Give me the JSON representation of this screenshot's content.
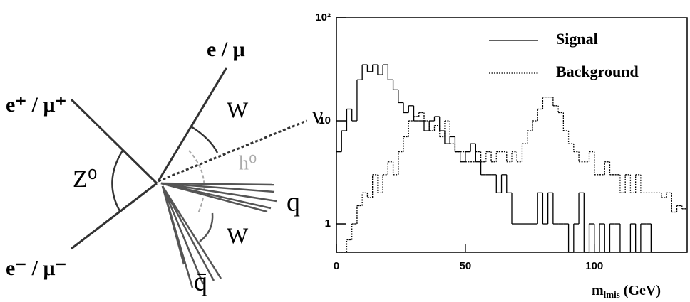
{
  "diagram": {
    "labels": {
      "e_mu": "e / μ",
      "e_plus": "e⁺ / μ⁺",
      "z0": "Z⁰",
      "e_minus": "e⁻ / μ⁻",
      "w_upper": "W",
      "nu": "ν",
      "h0": "h⁰",
      "q": "q",
      "w_lower": "W",
      "qbar": "q̄"
    }
  },
  "chart_data": {
    "type": "histogram",
    "x_label": "m",
    "x_label_sub": "lmis",
    "x_label_unit": "(GeV)",
    "bins": [
      0,
      2,
      4,
      6,
      8,
      10,
      12,
      14,
      16,
      18,
      20,
      22,
      24,
      26,
      28,
      30,
      32,
      34,
      36,
      38,
      40,
      42,
      44,
      46,
      48,
      50,
      52,
      54,
      56,
      58,
      60,
      62,
      64,
      66,
      68,
      70,
      72,
      74,
      76,
      78,
      80,
      82,
      84,
      86,
      88,
      90,
      92,
      94,
      96,
      98,
      100,
      102,
      104,
      106,
      108,
      110,
      112,
      114,
      116,
      118,
      120,
      122,
      124,
      126,
      128,
      130,
      132,
      134,
      136
    ],
    "series": [
      {
        "name": "Signal",
        "color": "#000000",
        "line_style": "solid",
        "values": [
          5,
          8,
          13,
          10,
          25,
          35,
          30,
          35,
          28,
          35,
          25,
          20,
          15,
          12,
          14,
          10,
          10,
          8,
          10,
          11,
          8,
          6,
          7,
          5,
          4,
          5,
          6,
          4,
          3,
          3,
          3,
          2,
          3,
          2,
          1,
          1,
          1,
          1,
          1,
          2,
          1,
          2,
          1,
          1,
          1,
          0,
          1,
          2,
          0,
          1,
          0,
          1,
          0,
          1,
          1,
          0,
          0,
          1,
          0,
          1,
          1,
          0,
          0,
          0,
          0,
          0,
          0,
          0
        ]
      },
      {
        "name": "Background",
        "color": "#000000",
        "line_style": "dotted",
        "values": [
          0,
          0,
          0.7,
          1,
          1.5,
          2,
          1.8,
          3,
          2,
          3,
          4,
          3,
          5,
          7,
          10,
          11,
          12,
          10,
          8,
          9,
          7,
          10,
          6,
          5,
          5,
          4,
          4,
          5,
          4,
          5,
          4,
          5,
          5,
          4,
          5,
          4,
          6,
          8,
          10,
          13,
          17,
          17,
          14,
          12,
          8,
          6,
          5,
          4,
          4,
          5,
          3,
          3,
          4,
          3,
          3,
          2,
          3,
          2,
          3,
          2,
          2,
          2,
          2,
          1.8,
          2,
          1.3,
          1.5,
          1.4
        ]
      }
    ],
    "xlim": [
      0,
      136
    ],
    "xticks": [
      0,
      50,
      100
    ],
    "ylim": [
      0.53,
      100
    ],
    "yticks": [
      1,
      10,
      {
        "value": 100,
        "label": "10²"
      }
    ],
    "log_y": true,
    "legend": "top-right"
  }
}
